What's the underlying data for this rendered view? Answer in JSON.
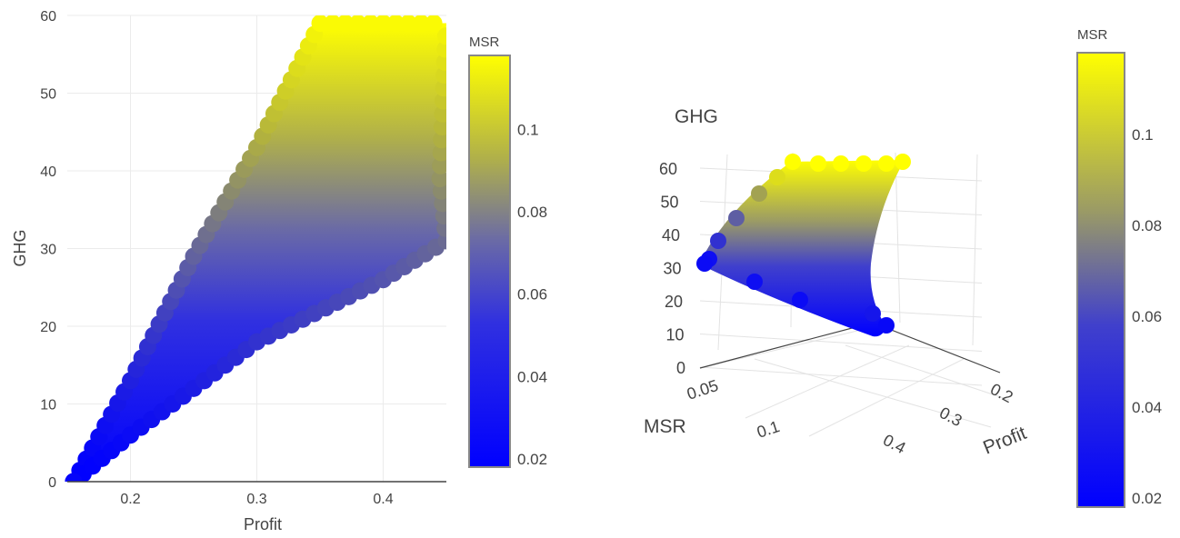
{
  "chart_data": [
    {
      "type": "scatter",
      "view": "2d",
      "xlabel": "Profit",
      "ylabel": "GHG",
      "xlim": [
        0.15,
        0.45
      ],
      "ylim": [
        0,
        60
      ],
      "x_ticks": [
        "0.2",
        "0.3",
        "0.4"
      ],
      "y_ticks": [
        "0",
        "10",
        "20",
        "30",
        "40",
        "50",
        "60"
      ],
      "grid": true,
      "color_var": "MSR",
      "region": {
        "upper_edge": [
          [
            0.155,
            0
          ],
          [
            0.2,
            13
          ],
          [
            0.25,
            29
          ],
          [
            0.3,
            43
          ],
          [
            0.35,
            59
          ],
          [
            0.45,
            59
          ]
        ],
        "lower_edge": [
          [
            0.155,
            0
          ],
          [
            0.2,
            6
          ],
          [
            0.25,
            12
          ],
          [
            0.3,
            18
          ],
          [
            0.4,
            26
          ],
          [
            0.45,
            31
          ]
        ],
        "right_edge": [
          [
            0.45,
            31
          ],
          [
            0.445,
            39
          ],
          [
            0.45,
            59
          ]
        ]
      },
      "colorbar": {
        "title": "MSR",
        "range": [
          0.018,
          0.118
        ],
        "ticks": [
          "0.02",
          "0.04",
          "0.06",
          "0.08",
          "0.1"
        ],
        "tick_values": [
          0.02,
          0.04,
          0.06,
          0.08,
          0.1
        ],
        "colors": [
          "#0000ff",
          "#5a5aa8",
          "#b4b43c",
          "#ffff00"
        ]
      }
    },
    {
      "type": "scatter",
      "view": "3d",
      "zlabel": "GHG",
      "xlabel": "MSR",
      "ylabel": "Profit",
      "z_ticks": [
        "0",
        "10",
        "20",
        "30",
        "40",
        "50",
        "60"
      ],
      "x_ticks": [
        "0.05",
        "0.1"
      ],
      "y_ticks": [
        "0.2",
        "0.3",
        "0.4"
      ],
      "color_var": "MSR",
      "colorbar": {
        "title": "MSR",
        "range": [
          0.018,
          0.118
        ],
        "ticks": [
          "0.02",
          "0.04",
          "0.06",
          "0.08",
          "0.1"
        ],
        "tick_values": [
          0.02,
          0.04,
          0.06,
          0.08,
          0.1
        ],
        "colors": [
          "#0000ff",
          "#5a5aa8",
          "#b4b43c",
          "#ffff00"
        ]
      }
    }
  ]
}
